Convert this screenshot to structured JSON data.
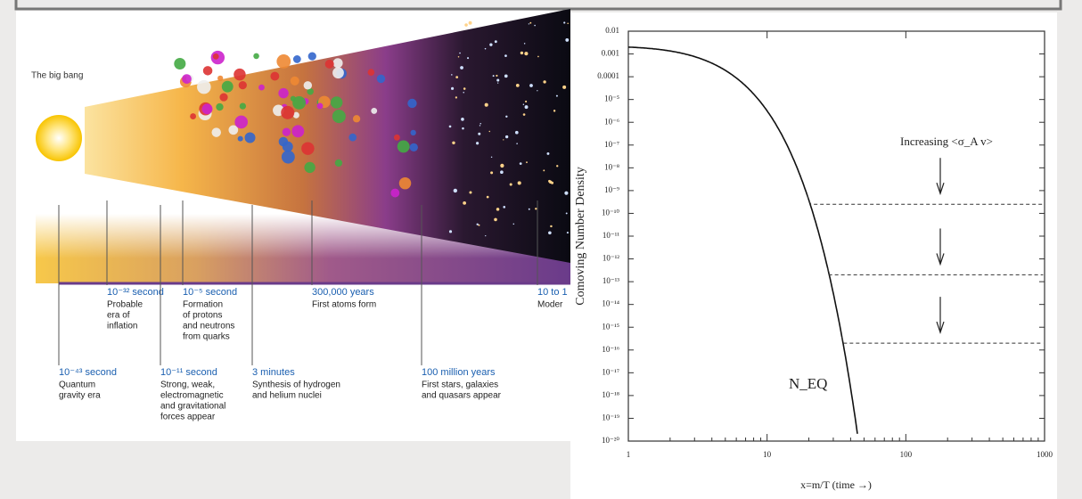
{
  "figure_left": {
    "title": "The big bang",
    "events_top": [
      {
        "time": "10⁻³² second",
        "text": [
          "Probable",
          "era of",
          "inflation"
        ]
      },
      {
        "time": "10⁻⁵ second",
        "text": [
          "Formation",
          "of protons",
          "and neutrons",
          "from quarks"
        ]
      },
      {
        "time": "300,000 years",
        "text": [
          "First atoms form"
        ]
      },
      {
        "time": "10 to 1",
        "text": [
          "Moder"
        ]
      }
    ],
    "events_bottom": [
      {
        "time": "10⁻⁴³ second",
        "text": [
          "Quantum",
          "gravity era"
        ]
      },
      {
        "time": "10⁻¹¹ second",
        "text": [
          "Strong, weak,",
          "electromagnetic",
          "and gravitational",
          "forces appear"
        ]
      },
      {
        "time": "3 minutes",
        "text": [
          "Synthesis of hydrogen",
          "and helium nuclei"
        ]
      },
      {
        "time": "100 million years",
        "text": [
          "First stars, galaxies",
          "and quasars appear"
        ]
      }
    ]
  },
  "figure_right": {
    "y_label": "Comoving Number Density",
    "x_label": "x=m/T (time →)",
    "annotation": "Increasing <σ_A v>",
    "curve_label": "N_EQ",
    "y_tick_labels": [
      "0.01",
      "0.001",
      "0.0001",
      "10⁻⁵",
      "10⁻⁶",
      "10⁻⁷",
      "10⁻⁸",
      "10⁻⁹",
      "10⁻¹⁰",
      "10⁻¹¹",
      "10⁻¹²",
      "10⁻¹³",
      "10⁻¹⁴",
      "10⁻¹⁵",
      "10⁻¹⁶",
      "10⁻¹⁷",
      "10⁻¹⁸",
      "10⁻¹⁹",
      "10⁻²⁰"
    ],
    "x_tick_labels": [
      "1",
      "10",
      "100",
      "1000"
    ]
  }
}
